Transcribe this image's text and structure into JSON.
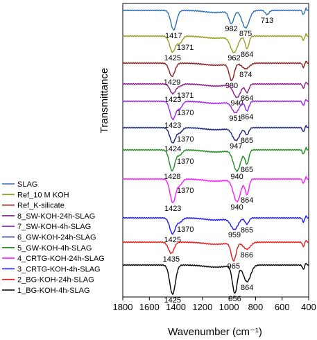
{
  "chart_data": {
    "type": "line",
    "xlabel": "Wavenumber (cm⁻¹)",
    "ylabel": "Transmittance",
    "xlim": [
      1800,
      400
    ],
    "x_reversed": true,
    "x_ticks": [
      "1800",
      "1600",
      "1400",
      "1200",
      "1000",
      "800",
      "600",
      "400"
    ],
    "grid": false,
    "legend_position": "bottom-left",
    "series": [
      {
        "name": "SLAG",
        "color": "#2e6fb5",
        "key_x": [
          1417,
          982,
          875,
          713
        ],
        "labels": [
          "1417",
          "982",
          "875",
          "713"
        ]
      },
      {
        "name": "Ref_10 M KOH",
        "color": "#9b9b1e",
        "key_x": [
          1425,
          1371,
          962,
          864
        ],
        "labels": [
          "1425",
          "1371",
          "962",
          "864"
        ]
      },
      {
        "name": "Ref_K-silicate",
        "color": "#8b1a1a",
        "key_x": [
          1429,
          980,
          874
        ],
        "labels": [
          "1429",
          "980",
          "874"
        ]
      },
      {
        "name": "8_SW-KOH-24h-SLAG",
        "color": "#8b1a8b",
        "key_x": [
          1423,
          1371,
          940,
          864
        ],
        "labels": [
          "1423",
          "1371",
          "940",
          "864"
        ]
      },
      {
        "name": "7_SW-KOH-4h-SLAG",
        "color": "#a020f0",
        "key_x": [
          1423,
          1370,
          951,
          864
        ],
        "labels": [
          "1423",
          "1370",
          "951",
          "864"
        ]
      },
      {
        "name": "6_GW-KOH-24h-SLAG",
        "color": "#1a237e",
        "key_x": [
          1424,
          1370,
          947,
          865
        ],
        "labels": [
          "1424",
          "1370",
          "947",
          "865"
        ]
      },
      {
        "name": "5_GW-KOH-4h-SLAG",
        "color": "#1e8b1e",
        "key_x": [
          1428,
          1370,
          940,
          865
        ],
        "labels": [
          "1428",
          "1370",
          "940",
          "865"
        ]
      },
      {
        "name": "4_CRTG-KOH-24h-SLAG",
        "color": "#ff1aff",
        "key_x": [
          1423,
          1370,
          940,
          864
        ],
        "labels": [
          "1423",
          "1370",
          "940",
          "864"
        ]
      },
      {
        "name": "3_CRTG-KOH-4h-SLAG",
        "color": "#1a1aff",
        "key_x": [
          1425,
          1370,
          959,
          865
        ],
        "labels": [
          "1425",
          "1370",
          "959",
          "865"
        ]
      },
      {
        "name": "2_BG-KOH-24h-SLAG",
        "color": "#e61a1a",
        "key_x": [
          1435,
          965,
          866
        ],
        "labels": [
          "1435",
          "965",
          "866"
        ]
      },
      {
        "name": "1_BG-KOH-4h-SLAG",
        "color": "#000000",
        "key_x": [
          1425,
          956,
          864
        ],
        "labels": [
          "1425",
          "956",
          "864"
        ]
      }
    ]
  }
}
